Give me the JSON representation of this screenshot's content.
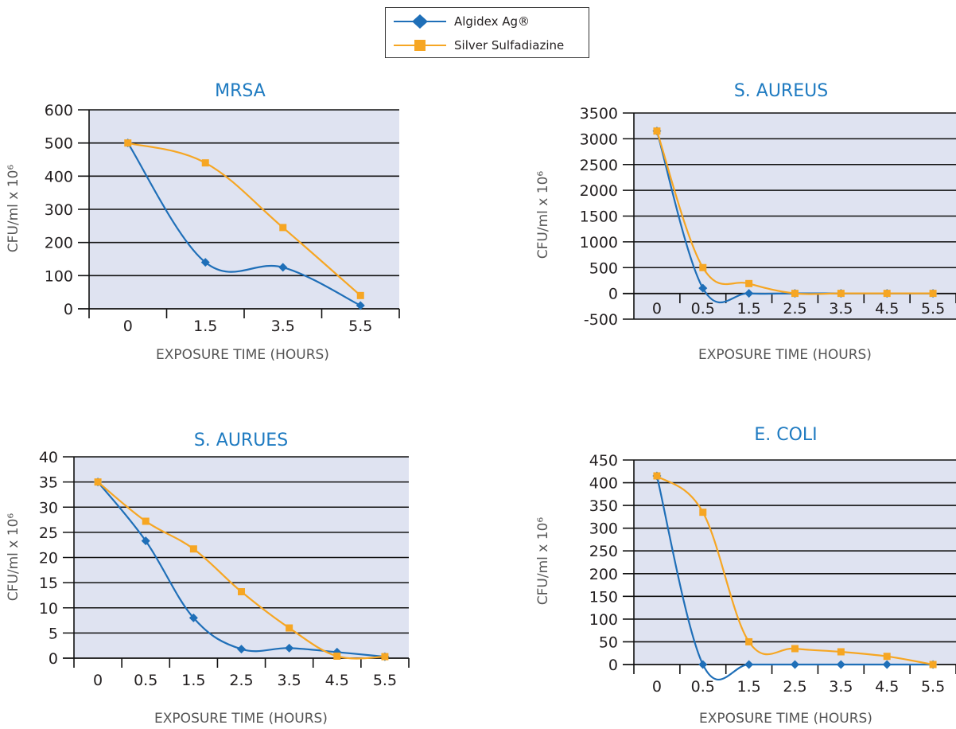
{
  "legend": {
    "items": [
      {
        "label": "Algidex Ag®",
        "color": "#1f6fb8",
        "marker": "diamond"
      },
      {
        "label": "Silver Sulfadiazine",
        "color": "#f6a623",
        "marker": "square"
      }
    ]
  },
  "chart_data": [
    {
      "type": "line",
      "title": "MRSA",
      "xlabel": "EXPOSURE TIME (HOURS)",
      "ylabel": "CFU/ml x 10⁶",
      "categories": [
        "0",
        "1.5",
        "3.5",
        "5.5"
      ],
      "yticks": [
        0,
        100,
        200,
        300,
        400,
        500,
        600
      ],
      "ylim": [
        0,
        600
      ],
      "grid": true,
      "series": [
        {
          "name": "Algidex Ag®",
          "values": [
            500,
            140,
            125,
            10
          ]
        },
        {
          "name": "Silver Sulfadiazine",
          "values": [
            500,
            440,
            245,
            40
          ]
        }
      ]
    },
    {
      "type": "line",
      "title": "S. AUREUS",
      "xlabel": "EXPOSURE TIME (HOURS)",
      "ylabel": "CFU/ml x 10⁶",
      "categories": [
        "0",
        "0.5",
        "1.5",
        "2.5",
        "3.5",
        "4.5",
        "5.5"
      ],
      "yticks": [
        -500,
        0,
        500,
        1000,
        1500,
        2000,
        2500,
        3000,
        3500
      ],
      "ylim": [
        -500,
        3500
      ],
      "grid": true,
      "series": [
        {
          "name": "Algidex Ag®",
          "values": [
            3150,
            100,
            0,
            0,
            0,
            0,
            0
          ]
        },
        {
          "name": "Silver Sulfadiazine",
          "values": [
            3150,
            500,
            190,
            0,
            0,
            0,
            0
          ]
        }
      ]
    },
    {
      "type": "line",
      "title": "S. AURUES",
      "xlabel": "EXPOSURE TIME (HOURS)",
      "ylabel": "CFU/ml x 10⁶",
      "categories": [
        "0",
        "0.5",
        "1.5",
        "2.5",
        "3.5",
        "4.5",
        "5.5"
      ],
      "yticks": [
        0,
        5,
        10,
        15,
        20,
        25,
        30,
        35,
        40
      ],
      "ylim": [
        0,
        40
      ],
      "grid": true,
      "series": [
        {
          "name": "Algidex Ag®",
          "values": [
            35,
            23.3,
            8,
            1.8,
            2,
            1.2,
            0.3
          ]
        },
        {
          "name": "Silver Sulfadiazine",
          "values": [
            35,
            27.2,
            21.7,
            13.2,
            6,
            0.4,
            0.3
          ]
        }
      ]
    },
    {
      "type": "line",
      "title": "E. COLI",
      "xlabel": "EXPOSURE TIME (HOURS)",
      "ylabel": "CFU/ml x 10⁶",
      "categories": [
        "0",
        "0.5",
        "1.5",
        "2.5",
        "3.5",
        "4.5",
        "5.5"
      ],
      "yticks": [
        0,
        50,
        100,
        150,
        200,
        250,
        300,
        350,
        400,
        450
      ],
      "ylim": [
        0,
        450
      ],
      "grid": true,
      "series": [
        {
          "name": "Algidex Ag®",
          "values": [
            415,
            0,
            0,
            0,
            0,
            0,
            0
          ]
        },
        {
          "name": "Silver Sulfadiazine",
          "values": [
            415,
            335,
            50,
            35,
            28,
            18,
            0
          ]
        }
      ]
    }
  ]
}
